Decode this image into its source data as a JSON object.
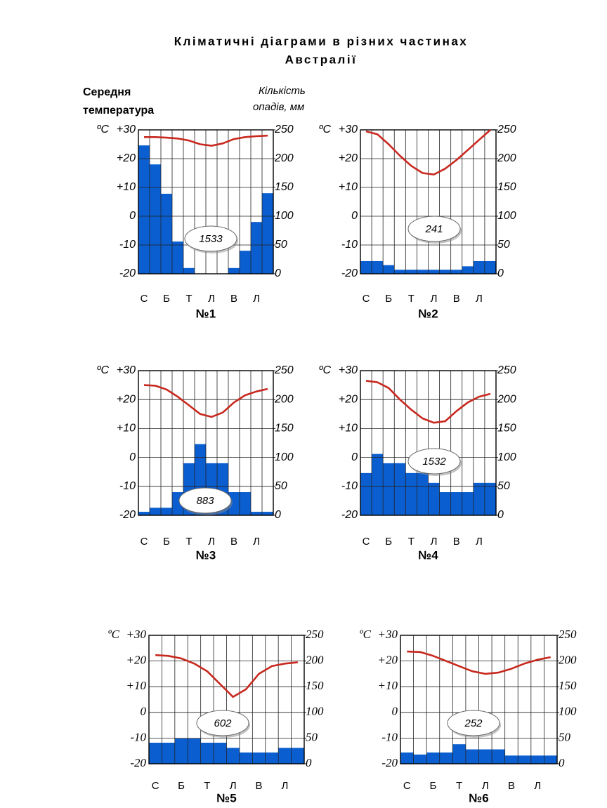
{
  "title": [
    "Кліматичні діаграми в різних частинах",
    "Австралії"
  ],
  "y_label": [
    "Середня",
    "температура"
  ],
  "y2_label": [
    "Кількість",
    "опадів, мм"
  ],
  "chart_data": [
    {
      "type": "bar",
      "title": "№1",
      "annotation": "1533",
      "yunit": "ºC",
      "grid": true,
      "categories": [
        "С",
        null,
        "Б",
        null,
        "Т",
        null,
        "Л",
        null,
        "В",
        null,
        "Л",
        null
      ],
      "series": [
        {
          "type": "bar",
          "axis": "y2",
          "color": "#0b5ed0",
          "values": [
            223,
            190,
            139,
            56,
            10,
            0,
            0,
            0,
            10,
            40,
            90,
            140
          ]
        },
        {
          "type": "line",
          "color": "#c8281e",
          "values": [
            27.5,
            27.5,
            27.3,
            27,
            26.3,
            25,
            24.5,
            25.3,
            26.8,
            27.5,
            27.8,
            28
          ]
        }
      ],
      "ylim": [
        -20,
        30
      ],
      "yticks": [
        -20,
        -10,
        0,
        {
          "value": 10,
          "label": "+10"
        },
        {
          "value": 20,
          "label": "+20"
        },
        {
          "value": 30,
          "label": "+30"
        }
      ],
      "y2lim": [
        0,
        250
      ],
      "y2ticks": [
        0,
        50,
        100,
        150,
        200,
        250
      ]
    },
    {
      "type": "bar",
      "title": "№2",
      "annotation": "241",
      "yunit": "ºC",
      "grid": true,
      "categories": [
        "С",
        null,
        "Б",
        null,
        "Т",
        null,
        "Л",
        null,
        "В",
        null,
        "Л",
        null
      ],
      "series": [
        {
          "type": "bar",
          "axis": "y2",
          "color": "#0b5ed0",
          "values": [
            22,
            22,
            15,
            7,
            7,
            7,
            7,
            7,
            7,
            13,
            22,
            22
          ]
        },
        {
          "type": "line",
          "color": "#c8281e",
          "values": [
            29.5,
            28.5,
            25,
            21,
            17.5,
            15,
            14.5,
            16.5,
            19.5,
            23,
            26.5,
            30
          ]
        }
      ],
      "ylim": [
        -20,
        30
      ],
      "yticks": [
        -20,
        -10,
        0,
        {
          "value": 10,
          "label": "+10"
        },
        {
          "value": 20,
          "label": "+20"
        },
        {
          "value": 30,
          "label": "+30"
        }
      ],
      "y2lim": [
        0,
        250
      ],
      "y2ticks": [
        0,
        50,
        100,
        150,
        200,
        250
      ]
    },
    {
      "type": "bar",
      "title": "№3",
      "annotation": "883",
      "yunit": "ºC",
      "grid": true,
      "categories": [
        "С",
        null,
        "Б",
        null,
        "Т",
        null,
        "Л",
        null,
        "В",
        null,
        "Л",
        null
      ],
      "series": [
        {
          "type": "bar",
          "axis": "y2",
          "color": "#0b5ed0",
          "values": [
            6,
            13,
            13,
            40,
            90,
            123,
            90,
            90,
            40,
            40,
            6,
            6
          ]
        },
        {
          "type": "line",
          "color": "#c8281e",
          "values": [
            25,
            24.8,
            23.5,
            21,
            18,
            15,
            14,
            15.5,
            19,
            21.5,
            22.8,
            23.7
          ]
        }
      ],
      "ylim": [
        -20,
        30
      ],
      "yticks": [
        -20,
        -10,
        0,
        {
          "value": 10,
          "label": "+10"
        },
        {
          "value": 20,
          "label": "+20"
        },
        {
          "value": 30,
          "label": "+30"
        }
      ],
      "y2lim": [
        0,
        250
      ],
      "y2ticks": [
        0,
        50,
        100,
        150,
        200,
        250
      ]
    },
    {
      "type": "bar",
      "title": "№4",
      "annotation": "1532",
      "yunit": "ºC",
      "grid": true,
      "categories": [
        "С",
        null,
        "Б",
        null,
        "Т",
        null,
        "Л",
        null,
        "В",
        null,
        "Л",
        null
      ],
      "series": [
        {
          "type": "bar",
          "axis": "y2",
          "color": "#0b5ed0",
          "values": [
            73,
            106,
            90,
            90,
            73,
            73,
            56,
            40,
            40,
            40,
            56,
            56
          ]
        },
        {
          "type": "line",
          "color": "#c8281e",
          "values": [
            26.5,
            26,
            24,
            20,
            16.5,
            13.5,
            12,
            12.5,
            16,
            19,
            21,
            22
          ]
        }
      ],
      "ylim": [
        -20,
        30
      ],
      "yticks": [
        -20,
        -10,
        0,
        {
          "value": 10,
          "label": "+10"
        },
        {
          "value": 20,
          "label": "+20"
        },
        {
          "value": 30,
          "label": "+30"
        }
      ],
      "y2lim": [
        0,
        250
      ],
      "y2ticks": [
        0,
        50,
        100,
        150,
        200,
        250
      ]
    },
    {
      "type": "bar",
      "title": "№5",
      "annotation": "602",
      "yunit": "ºC",
      "grid": true,
      "categories": [
        "С",
        null,
        "Б",
        null,
        "Т",
        null,
        "Л",
        null,
        "В",
        null,
        "Л",
        null
      ],
      "series": [
        {
          "type": "bar",
          "axis": "y2",
          "color": "#0b5ed0",
          "values": [
            41,
            41,
            49,
            49,
            41,
            41,
            31,
            22,
            22,
            22,
            31,
            31
          ]
        },
        {
          "type": "line",
          "color": "#c8281e",
          "values": [
            22.3,
            22,
            21,
            19,
            16,
            11,
            6,
            9,
            15,
            18,
            19,
            19.5
          ]
        }
      ],
      "ylim": [
        -20,
        30
      ],
      "yticks": [
        -20,
        -10,
        0,
        {
          "value": 10,
          "label": "+10"
        },
        {
          "value": 20,
          "label": "+20"
        },
        {
          "value": 30,
          "label": "+30"
        }
      ],
      "y2lim": [
        0,
        250
      ],
      "y2ticks": [
        0,
        50,
        100,
        150,
        200,
        250
      ]
    },
    {
      "type": "bar",
      "title": "№6",
      "annotation": "252",
      "yunit": "ºC",
      "grid": true,
      "categories": [
        "С",
        null,
        "Б",
        null,
        "Т",
        null,
        "Л",
        null,
        "В",
        null,
        "Л",
        null
      ],
      "series": [
        {
          "type": "bar",
          "axis": "y2",
          "color": "#0b5ed0",
          "values": [
            22,
            18,
            22,
            22,
            38,
            28,
            28,
            28,
            16,
            16,
            16,
            16
          ]
        },
        {
          "type": "line",
          "color": "#c8281e",
          "values": [
            23.7,
            23.5,
            22,
            20,
            18,
            16,
            15,
            15.5,
            17,
            19,
            20.5,
            21.5
          ]
        }
      ],
      "ylim": [
        -20,
        30
      ],
      "yticks": [
        -20,
        -10,
        0,
        {
          "value": 10,
          "label": "+10"
        },
        {
          "value": 20,
          "label": "+20"
        },
        {
          "value": 30,
          "label": "+30"
        }
      ],
      "y2lim": [
        0,
        250
      ],
      "y2ticks": [
        0,
        50,
        100,
        150,
        200,
        250
      ]
    }
  ]
}
